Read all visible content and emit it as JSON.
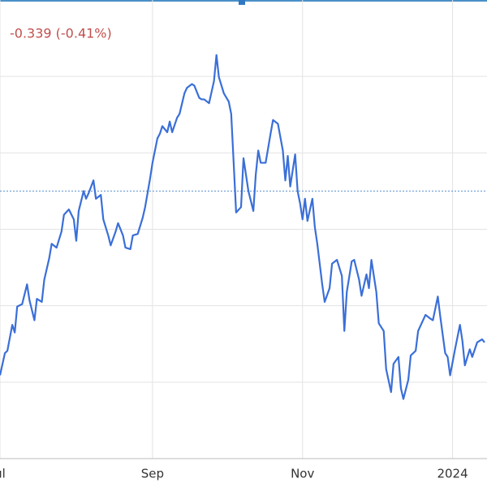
{
  "chart_data": {
    "type": "line",
    "annotation": "-0.339 (-0.41%)",
    "x": [
      0,
      2,
      3,
      5,
      6,
      7,
      9,
      11,
      12,
      14,
      15,
      17,
      18,
      20,
      21,
      23,
      25,
      26,
      28,
      30,
      31,
      32,
      34,
      35,
      36,
      38,
      39,
      41,
      42,
      44,
      45,
      47,
      48,
      50,
      51,
      53,
      54,
      56,
      58,
      59,
      61,
      62,
      64,
      65,
      66,
      68,
      69,
      70,
      72,
      73,
      75,
      76,
      78,
      79,
      81,
      82,
      83,
      85,
      87,
      88,
      89,
      91,
      93,
      94,
      95,
      96,
      98,
      99,
      101,
      103,
      104,
      105,
      106,
      108,
      110,
      111,
      113,
      115,
      116,
      117,
      118,
      120,
      121,
      122,
      123,
      124,
      125,
      127,
      128,
      129,
      131,
      132,
      134,
      135,
      137,
      139,
      140,
      141,
      143,
      144,
      146,
      147,
      149,
      150,
      151,
      153,
      154,
      156,
      157,
      159,
      160,
      162,
      163,
      164,
      166,
      167,
      169,
      170,
      172,
      173,
      175,
      176,
      178,
      179,
      181,
      182,
      183,
      185,
      187,
      188,
      189,
      191,
      192,
      194,
      196,
      197
    ],
    "series": [
      {
        "color": "#3a6fd8",
        "values": [
          1.09,
          1.38,
          1.41,
          1.75,
          1.65,
          1.99,
          2.02,
          2.28,
          2.07,
          1.81,
          2.09,
          2.05,
          2.34,
          2.62,
          2.81,
          2.76,
          2.97,
          3.19,
          3.26,
          3.13,
          2.85,
          3.24,
          3.5,
          3.4,
          3.47,
          3.64,
          3.4,
          3.45,
          3.13,
          2.92,
          2.79,
          2.97,
          3.08,
          2.92,
          2.76,
          2.74,
          2.92,
          2.94,
          3.15,
          3.29,
          3.66,
          3.87,
          4.19,
          4.25,
          4.35,
          4.27,
          4.41,
          4.27,
          4.46,
          4.51,
          4.78,
          4.85,
          4.9,
          4.88,
          4.72,
          4.7,
          4.7,
          4.65,
          4.94,
          5.28,
          4.99,
          4.78,
          4.67,
          4.51,
          3.87,
          3.22,
          3.29,
          3.93,
          3.5,
          3.24,
          3.72,
          4.03,
          3.87,
          3.87,
          4.25,
          4.43,
          4.38,
          4.03,
          3.64,
          3.96,
          3.56,
          3.98,
          3.5,
          3.34,
          3.13,
          3.4,
          3.11,
          3.4,
          3.03,
          2.81,
          2.28,
          2.05,
          2.23,
          2.55,
          2.6,
          2.39,
          1.67,
          2.18,
          2.58,
          2.6,
          2.34,
          2.13,
          2.41,
          2.23,
          2.6,
          2.18,
          1.77,
          1.67,
          1.17,
          0.87,
          1.24,
          1.33,
          0.92,
          0.78,
          1.03,
          1.35,
          1.41,
          1.67,
          1.81,
          1.88,
          1.83,
          1.81,
          2.12,
          1.86,
          1.38,
          1.33,
          1.09,
          1.43,
          1.75,
          1.54,
          1.22,
          1.43,
          1.33,
          1.52,
          1.56,
          1.52
        ]
      }
    ],
    "reference_line": 3.5,
    "xlim": [
      0,
      198
    ],
    "xticks": [
      {
        "value": 0,
        "label": "ul"
      },
      {
        "value": 62,
        "label": "Sep"
      },
      {
        "value": 123,
        "label": "Nov"
      },
      {
        "value": 184,
        "label": "2024"
      }
    ],
    "ylim": [
      0,
      6
    ],
    "yticks": [
      1,
      2,
      3,
      4,
      5
    ],
    "grid": true
  }
}
